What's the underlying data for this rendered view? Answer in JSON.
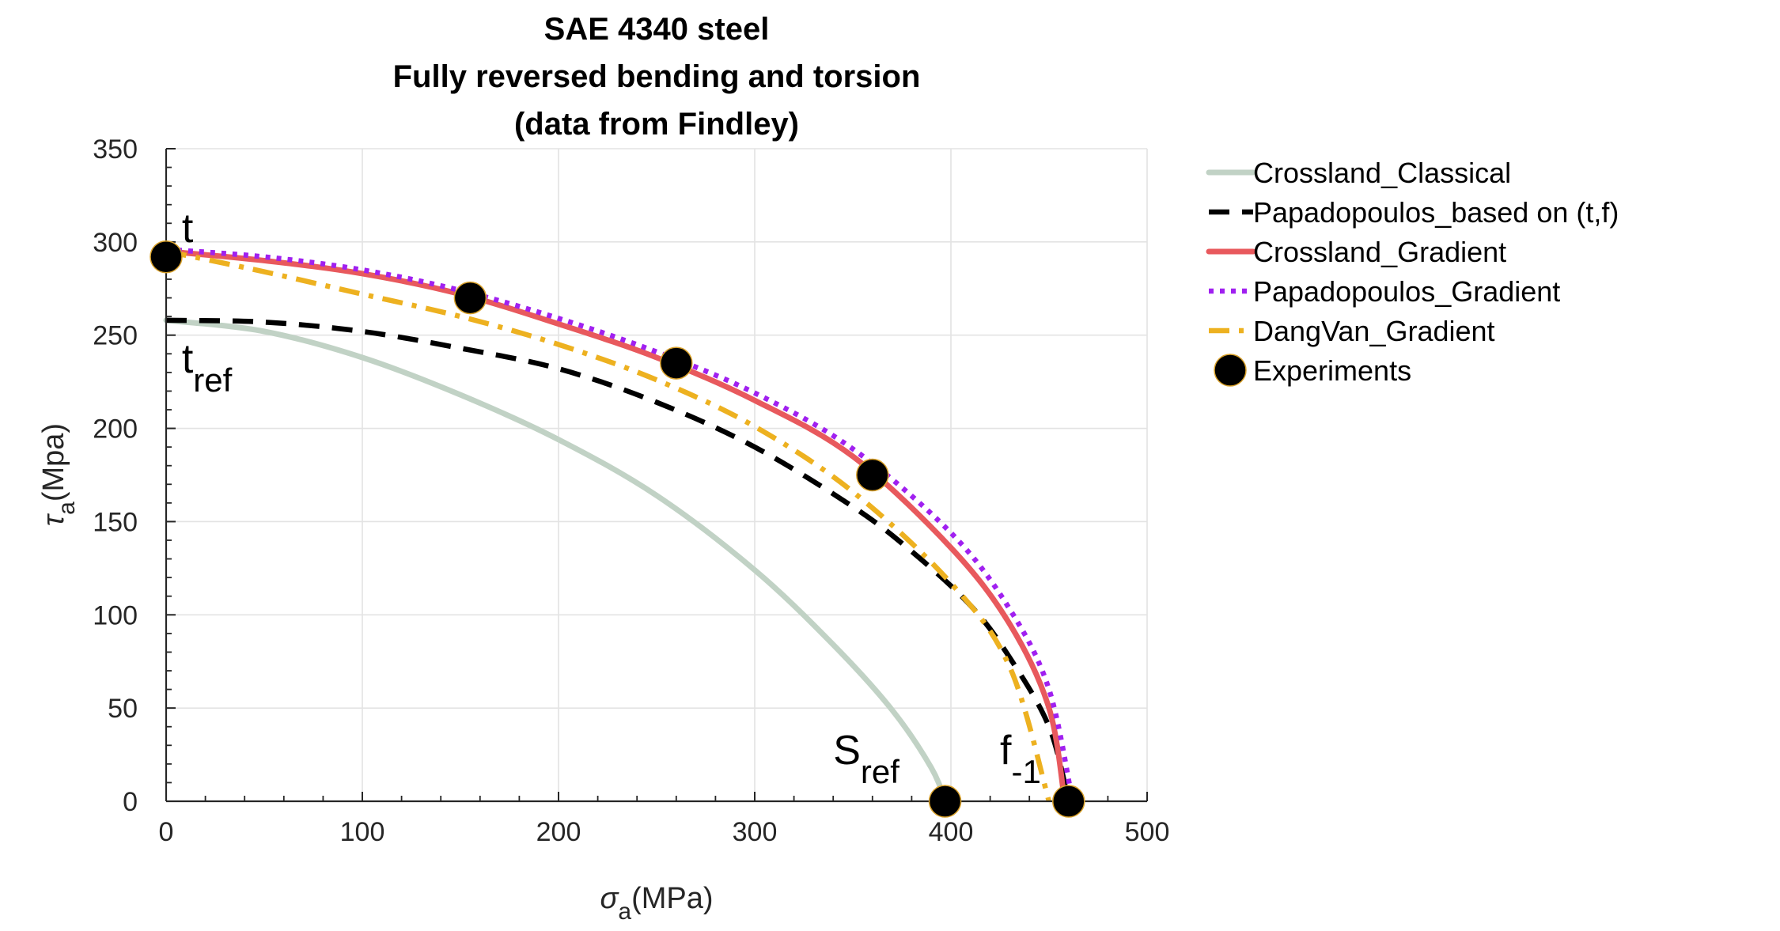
{
  "chart_data": {
    "type": "line",
    "title": [
      "SAE 4340 steel",
      "Fully reversed bending and torsion",
      "(data from Findley)"
    ],
    "xlabel": {
      "symbol": "σ",
      "sub": "a",
      "text": "(MPa)"
    },
    "ylabel": {
      "symbol": "τ",
      "sub": "a",
      "text": "(Mpa)"
    },
    "xlim": [
      0,
      500
    ],
    "ylim": [
      0,
      350
    ],
    "xticks": [
      0,
      100,
      200,
      300,
      400,
      500
    ],
    "yticks": [
      0,
      50,
      100,
      150,
      200,
      250,
      300,
      350
    ],
    "xtick_labels": [
      "0",
      "100",
      "200",
      "300",
      "400",
      "500"
    ],
    "ytick_labels": [
      "0",
      "50",
      "100",
      "150",
      "200",
      "250",
      "300",
      "350"
    ],
    "grid": true,
    "legend_position": "outside right top",
    "series": [
      {
        "name": "Crossland_Classical",
        "color": "#c1d2c5",
        "style": "solid",
        "x": [
          0,
          50,
          100,
          150,
          200,
          250,
          300,
          340,
          370,
          390,
          397
        ],
        "y": [
          258,
          252,
          238,
          218,
          194,
          164,
          124,
          84,
          49,
          18,
          0
        ]
      },
      {
        "name": "Papadopoulos_based on (t,f)",
        "color": "#000000",
        "style": "dashed",
        "x": [
          0,
          50,
          100,
          150,
          200,
          250,
          300,
          350,
          380,
          410,
          430,
          450,
          460
        ],
        "y": [
          258,
          257,
          252,
          243,
          232,
          214,
          190,
          158,
          134,
          105,
          77,
          40,
          0
        ]
      },
      {
        "name": "Crossland_Gradient",
        "color": "#e8595d",
        "style": "solid",
        "x": [
          0,
          50,
          100,
          150,
          200,
          250,
          300,
          350,
          400,
          430,
          450,
          458
        ],
        "y": [
          295,
          290,
          283,
          272,
          256,
          238,
          215,
          185,
          136,
          95,
          50,
          0
        ]
      },
      {
        "name": "Papadopoulos_Gradient",
        "color": "#a020f0",
        "style": "dotted",
        "x": [
          0,
          50,
          100,
          150,
          200,
          250,
          300,
          350,
          400,
          430,
          450,
          462
        ],
        "y": [
          296,
          292,
          285,
          274,
          259,
          241,
          219,
          189,
          144,
          103,
          60,
          0
        ]
      },
      {
        "name": "DangVan_Gradient",
        "color": "#edb120",
        "style": "dashdot",
        "x": [
          0,
          50,
          100,
          150,
          200,
          250,
          300,
          350,
          400,
          430,
          450
        ],
        "y": [
          295,
          284,
          272,
          260,
          245,
          226,
          201,
          166,
          117,
          72,
          0
        ]
      },
      {
        "name": "Experiments",
        "color": "#000000",
        "style": "markers",
        "x": [
          0,
          155,
          260,
          360,
          397,
          460
        ],
        "y": [
          292,
          270,
          235,
          175,
          0,
          0
        ]
      }
    ],
    "annotations": [
      {
        "main": "t",
        "sub": "",
        "x": 8,
        "y": 300
      },
      {
        "main": "t",
        "sub": "ref",
        "x": 8,
        "y": 230
      },
      {
        "main": "S",
        "sub": "ref",
        "x": 340,
        "y": 20
      },
      {
        "main": "f",
        "sub": "-1",
        "x": 425,
        "y": 20
      }
    ]
  }
}
